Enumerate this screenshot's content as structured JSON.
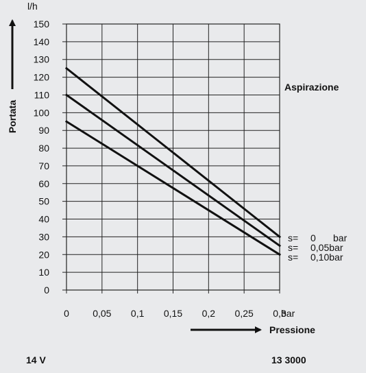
{
  "chart_data": {
    "type": "line",
    "x": [
      0,
      0.05,
      0.1,
      0.15,
      0.2,
      0.25,
      0.3
    ],
    "x_tick_labels": [
      "0",
      "0,05",
      "0,1",
      "0,15",
      "0,2",
      "0,25",
      "0,3"
    ],
    "y_tick_labels": [
      "0",
      "10",
      "20",
      "30",
      "40",
      "50",
      "60",
      "70",
      "80",
      "90",
      "100",
      "110",
      "120",
      "130",
      "140",
      "150"
    ],
    "xlim": [
      0,
      0.3
    ],
    "ylim": [
      0,
      150
    ],
    "x_unit": "bar",
    "y_unit": "l/h",
    "xlabel": "Pressione",
    "ylabel": "Portata",
    "annotation": "Aspirazione",
    "grid": true,
    "series": [
      {
        "name": "s= 0 bar",
        "label_parts": [
          "s=",
          "0",
          "bar"
        ],
        "points": [
          [
            0,
            125
          ],
          [
            0.3,
            30
          ]
        ]
      },
      {
        "name": "s= 0,05bar",
        "label_parts": [
          "s=",
          "0,05bar",
          ""
        ],
        "points": [
          [
            0,
            110
          ],
          [
            0.3,
            25
          ]
        ]
      },
      {
        "name": "s= 0,10bar",
        "label_parts": [
          "s=",
          "0,10bar",
          ""
        ],
        "points": [
          [
            0,
            95
          ],
          [
            0.3,
            20
          ]
        ]
      }
    ]
  },
  "footer": {
    "left": "14 V",
    "right": "13 3000"
  }
}
